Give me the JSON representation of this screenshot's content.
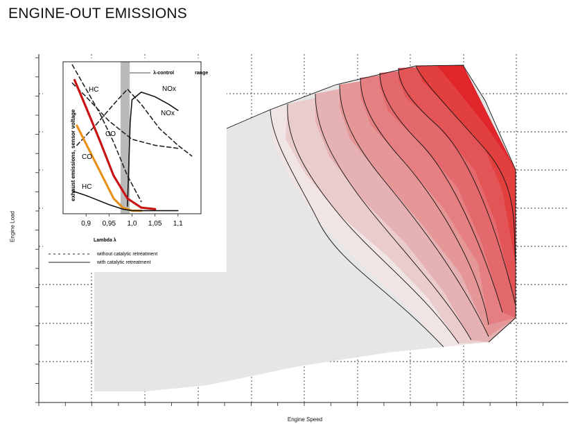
{
  "chart_data": [
    {
      "type": "heatmap",
      "title": "ENGINE-OUT EMISSIONS",
      "xlabel": "Engine Speed",
      "ylabel": "Engine Load",
      "grid": true,
      "colors": {
        "low": "#f0e4e4",
        "high": "#e0262a",
        "outside": "#e6e6e6",
        "contour": "#111111"
      }
    },
    {
      "type": "line",
      "xlabel": "Lambda   λ",
      "ylabel": "exhaust emissions, sensor voltage",
      "x_ticks": [
        "0,9",
        "0,95",
        "1,0",
        "1,05",
        "1,1"
      ],
      "xlim": [
        0.85,
        1.15
      ],
      "band_label": "λ-control",
      "band_label2": "range",
      "band": [
        0.975,
        0.995
      ],
      "legend": [
        {
          "style": "dashed",
          "label": "without catalytic retreatment"
        },
        {
          "style": "solid",
          "label": "with catalytic retreatment"
        }
      ],
      "series": [
        {
          "name": "HC",
          "style": "dashed",
          "color": "#222222",
          "x": [
            0.87,
            0.9,
            0.95,
            1.0,
            1.05,
            1.1
          ],
          "y": [
            0.86,
            0.77,
            0.61,
            0.49,
            0.45,
            0.43
          ]
        },
        {
          "name": "NOx",
          "style": "dashed",
          "color": "#222222",
          "x": [
            0.88,
            0.92,
            0.96,
            0.99,
            1.02,
            1.06,
            1.1,
            1.13
          ],
          "y": [
            0.45,
            0.58,
            0.72,
            0.82,
            0.72,
            0.56,
            0.45,
            0.38
          ]
        },
        {
          "name": "CO",
          "style": "dashed",
          "color": "#222222",
          "x": [
            0.87,
            0.9,
            0.93,
            0.96,
            0.99,
            1.02
          ],
          "y": [
            0.98,
            0.82,
            0.66,
            0.47,
            0.25,
            0.08
          ]
        },
        {
          "name": "NOx",
          "style": "solid",
          "color": "#111111",
          "x": [
            0.99,
            0.996,
            1.0,
            1.02,
            1.05,
            1.08,
            1.1
          ],
          "y": [
            0.05,
            0.6,
            0.75,
            0.8,
            0.77,
            0.72,
            0.68
          ]
        },
        {
          "name": "CO",
          "style": "solid",
          "color": "#e8921c",
          "x": [
            0.88,
            0.9,
            0.93,
            0.96,
            0.98,
            1.0,
            1.02
          ],
          "y": [
            0.58,
            0.46,
            0.28,
            0.1,
            0.04,
            0.02,
            0.02
          ]
        },
        {
          "name": "HC",
          "style": "solid",
          "color": "#c81414",
          "x": [
            0.875,
            0.9,
            0.93,
            0.96,
            0.99,
            1.02,
            1.05
          ],
          "y": [
            0.88,
            0.7,
            0.48,
            0.25,
            0.1,
            0.04,
            0.03
          ]
        },
        {
          "name": "HC",
          "style": "solid",
          "color": "#111111",
          "x": [
            0.87,
            0.9,
            0.95,
            0.98,
            1.0,
            1.05,
            1.1
          ],
          "y": [
            0.15,
            0.12,
            0.06,
            0.03,
            0.02,
            0.02,
            0.02
          ]
        }
      ]
    }
  ]
}
